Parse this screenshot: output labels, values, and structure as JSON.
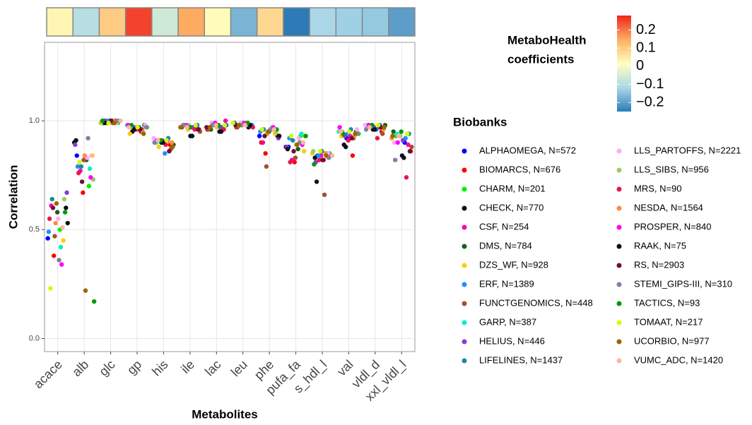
{
  "chart_data": {
    "type": "strip",
    "x_label": "Metabolites",
    "y_label": "Correlation",
    "categories": [
      "acace",
      "alb",
      "glc",
      "gp",
      "his",
      "ile",
      "lac",
      "leu",
      "phe",
      "pufa_fa",
      "s_hdl_l",
      "val",
      "vldl_d",
      "xxl_vldl_l"
    ],
    "ylim": [
      -0.06,
      1.36
    ],
    "yticks": [
      {
        "value": 0,
        "label": "0.0"
      },
      {
        "value": 0.5,
        "label": "0.5"
      },
      {
        "value": 1,
        "label": "1.0"
      }
    ],
    "grid": true,
    "legend_title": "Biobanks",
    "coefficients": [
      0.03,
      -0.1,
      0.1,
      0.25,
      -0.06,
      0.15,
      0.02,
      -0.17,
      0.08,
      -0.25,
      -0.12,
      -0.13,
      -0.14,
      -0.2
    ],
    "colorbar_title": [
      "MetaboHealth",
      "coefficients"
    ],
    "colormap": [
      "#2c7bb6",
      "#abd9e9",
      "#ffffbf",
      "#fdae61",
      "#f0241c"
    ],
    "clim": [
      -0.25,
      0.28
    ],
    "colorbar_ticks": [
      0.2,
      0.1,
      0,
      {
        "value": -0.1,
        "label": "−0.1"
      },
      {
        "value": -0.2,
        "label": "−0.2"
      }
    ],
    "series": [
      {
        "name": "ALPHAOMEGA, N=572",
        "color": "#0000ff",
        "values": [
          0.46,
          0.84,
          1.0,
          0.96,
          0.9,
          0.97,
          0.97,
          0.98,
          0.93,
          0.88,
          0.84,
          0.92,
          0.96,
          0.9
        ]
      },
      {
        "name": "BIOMARCS, N=676",
        "color": "#ff0000",
        "values": [
          0.38,
          0.67,
          1.0,
          0.95,
          0.89,
          0.96,
          0.96,
          0.97,
          0.85,
          0.81,
          0.82,
          0.84,
          0.95,
          0.86
        ]
      },
      {
        "name": "CHARM, N=201",
        "color": "#00ee00",
        "values": [
          0.5,
          0.7,
          0.99,
          0.97,
          0.91,
          0.98,
          0.98,
          0.99,
          0.96,
          0.93,
          0.85,
          0.94,
          0.97,
          0.93
        ]
      },
      {
        "name": "CHECK, N=770",
        "color": "#0a0a2a",
        "values": [
          0.6,
          0.9,
          0.99,
          0.95,
          0.9,
          0.93,
          0.95,
          0.97,
          0.93,
          0.88,
          0.83,
          0.89,
          0.96,
          0.84
        ]
      },
      {
        "name": "CSF, N=254",
        "color": "#ff00b0",
        "values": [
          0.61,
          0.77,
          1.0,
          0.97,
          0.91,
          0.98,
          1.0,
          0.99,
          0.9,
          0.82,
          0.84,
          0.93,
          0.97,
          0.89
        ]
      },
      {
        "name": "DMS, N=784",
        "color": "#1a5e1a",
        "values": [
          0.58,
          0.82,
          1.0,
          0.98,
          0.89,
          0.97,
          0.96,
          0.98,
          0.95,
          0.87,
          0.85,
          0.95,
          0.98,
          0.95
        ]
      },
      {
        "name": "DZS_WF, N=928",
        "color": "#ffcc00",
        "values": [
          0.45,
          0.84,
          0.99,
          0.94,
          0.88,
          0.96,
          0.97,
          0.98,
          0.94,
          0.86,
          0.85,
          0.93,
          0.98,
          0.93
        ]
      },
      {
        "name": "ERF, N=1389",
        "color": "#1e90ff",
        "values": [
          0.49,
          0.79,
          1.0,
          0.97,
          0.85,
          0.97,
          0.97,
          0.98,
          0.95,
          0.92,
          0.84,
          0.94,
          0.96,
          0.92
        ]
      },
      {
        "name": "FUNCTGENOMICS, N=448",
        "color": "#a0522d",
        "values": [
          0.47,
          0.82,
          0.99,
          0.96,
          0.87,
          0.95,
          0.96,
          0.97,
          0.79,
          0.83,
          0.66,
          0.92,
          0.94,
          0.88
        ]
      },
      {
        "name": "GARP, N=387",
        "color": "#00f0c8",
        "values": [
          0.42,
          0.78,
          1.0,
          0.98,
          0.9,
          0.98,
          0.98,
          0.99,
          0.97,
          0.94,
          0.84,
          0.95,
          0.98,
          0.94
        ]
      },
      {
        "name": "HELIUS, N=446",
        "color": "#8a3ad6",
        "values": [
          0.67,
          0.89,
          1.0,
          0.97,
          0.91,
          0.97,
          0.97,
          0.98,
          0.92,
          0.88,
          0.81,
          0.93,
          0.97,
          0.91
        ]
      },
      {
        "name": "LIFELINES, N=1437",
        "color": "#1a8a9a",
        "values": [
          0.64,
          0.79,
          1.0,
          0.97,
          0.92,
          0.98,
          0.98,
          0.99,
          0.96,
          0.91,
          0.86,
          0.96,
          0.98,
          0.94
        ]
      },
      {
        "name": "LLS_PARTOFFS, N=2221",
        "color": "#ffaaff",
        "values": [
          0.55,
          0.83,
          0.99,
          0.98,
          0.92,
          0.98,
          0.99,
          0.99,
          0.96,
          0.92,
          0.85,
          0.96,
          0.98,
          0.9
        ]
      },
      {
        "name": "LLS_SIBS, N=956",
        "color": "#99cc66",
        "values": [
          0.64,
          0.73,
          0.99,
          0.97,
          0.91,
          0.98,
          0.98,
          0.99,
          0.95,
          0.93,
          0.86,
          0.95,
          0.98,
          0.93
        ]
      },
      {
        "name": "MRS, N=90",
        "color": "#e6194b",
        "values": [
          0.55,
          0.76,
          0.99,
          0.96,
          0.89,
          0.96,
          0.96,
          0.97,
          0.9,
          0.81,
          0.82,
          0.91,
          0.92,
          0.74
        ]
      },
      {
        "name": "NESDA, N=1564",
        "color": "#ff8c42",
        "values": [
          0.53,
          0.84,
          1.0,
          0.95,
          0.9,
          0.97,
          0.97,
          0.98,
          0.94,
          0.89,
          0.85,
          0.93,
          0.96,
          0.92
        ]
      },
      {
        "name": "PROSPER, N=840",
        "color": "#ff00ff",
        "values": [
          0.34,
          0.74,
          1.0,
          0.98,
          0.91,
          0.98,
          0.99,
          0.99,
          0.97,
          0.89,
          0.84,
          0.97,
          0.98,
          0.9
        ]
      },
      {
        "name": "RAAK, N=75",
        "color": "#111111",
        "values": [
          0.53,
          0.91,
          0.99,
          0.96,
          0.9,
          0.93,
          0.95,
          0.98,
          0.93,
          0.87,
          0.72,
          0.88,
          0.96,
          0.83
        ]
      },
      {
        "name": "RS, N=2903",
        "color": "#6b0f3a",
        "values": [
          0.6,
          0.72,
          1.0,
          0.96,
          0.86,
          0.96,
          0.97,
          0.98,
          0.93,
          0.86,
          0.82,
          0.92,
          0.97,
          0.86
        ]
      },
      {
        "name": "STEMI_GIPS-III, N=310",
        "color": "#8080a0",
        "values": [
          0.36,
          0.92,
          1.0,
          0.97,
          0.9,
          0.98,
          0.98,
          0.98,
          0.96,
          0.9,
          0.83,
          0.94,
          0.96,
          0.82
        ]
      },
      {
        "name": "TACTICS, N=93",
        "color": "#009900",
        "values": [
          0.58,
          0.17,
          1.0,
          0.98,
          0.91,
          0.97,
          0.98,
          0.99,
          0.96,
          0.93,
          0.8,
          0.94,
          0.98,
          0.95
        ]
      },
      {
        "name": "TOMAAT, N=217",
        "color": "#ccff00",
        "values": [
          0.23,
          0.81,
          0.99,
          0.97,
          0.91,
          0.98,
          0.98,
          0.99,
          0.96,
          0.93,
          0.86,
          0.95,
          0.98,
          0.94
        ]
      },
      {
        "name": "UCORBIO, N=977",
        "color": "#996600",
        "values": [
          0.62,
          0.22,
          0.99,
          0.94,
          0.88,
          0.97,
          0.97,
          0.98,
          0.95,
          0.89,
          0.84,
          0.94,
          0.97,
          0.93
        ]
      },
      {
        "name": "VUMC_ADC, N=1420",
        "color": "#ffb6a0",
        "values": [
          0.51,
          0.84,
          1.0,
          0.97,
          0.91,
          0.97,
          0.98,
          0.98,
          0.96,
          0.9,
          0.84,
          0.95,
          0.97,
          0.93
        ]
      }
    ]
  }
}
